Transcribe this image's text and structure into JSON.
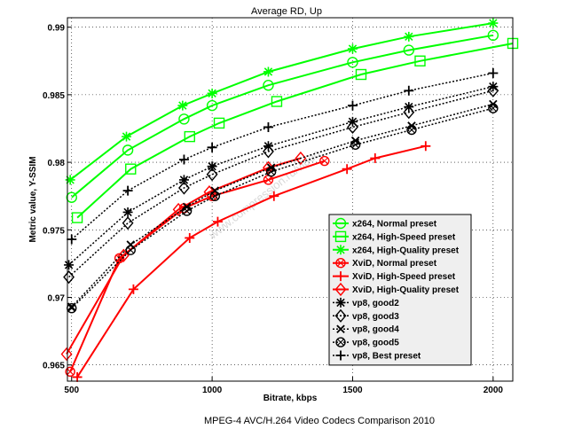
{
  "chart_data": {
    "type": "line",
    "title": "Average RD, Up",
    "xlabel": "Bitrate, kbps",
    "ylabel": "Metric value, Y-SSIM",
    "footer": "MPEG-4 AVC/H.264 Video Codecs Comparison 2010",
    "watermark": "www.compression.ru/video",
    "xlim": [
      485,
      2070
    ],
    "ylim": [
      0.9638,
      0.9907
    ],
    "xticks": [
      500,
      1000,
      1500,
      2000
    ],
    "yticks": [
      0.965,
      0.97,
      0.975,
      0.98,
      0.985,
      0.99
    ],
    "ytick_labels": [
      "0.965",
      "0.97",
      "0.975",
      "0.98",
      "0.985",
      "0.99"
    ],
    "legend_position": "bottom-right",
    "series": [
      {
        "name": "x264, Normal preset",
        "color": "#00ff00",
        "dash": "solid",
        "marker": "circle",
        "x": [
          500,
          700,
          900,
          1000,
          1200,
          1500,
          1700,
          2000
        ],
        "y": [
          0.9774,
          0.9809,
          0.9832,
          0.9842,
          0.9857,
          0.9874,
          0.9883,
          0.9894
        ]
      },
      {
        "name": "x264, High-Speed preset",
        "color": "#00ff00",
        "dash": "solid",
        "marker": "square",
        "x": [
          520,
          710,
          920,
          1025,
          1230,
          1530,
          1740,
          2070
        ],
        "y": [
          0.9759,
          0.9795,
          0.9819,
          0.9829,
          0.9845,
          0.9865,
          0.9875,
          0.9888
        ]
      },
      {
        "name": "x264, High-Quality preset",
        "color": "#00ff00",
        "dash": "solid",
        "marker": "star",
        "x": [
          495,
          695,
          895,
          1000,
          1200,
          1500,
          1700,
          2000
        ],
        "y": [
          0.9787,
          0.9819,
          0.9842,
          0.9851,
          0.9867,
          0.9884,
          0.9893,
          0.9903
        ]
      },
      {
        "name": "XviD, Normal preset",
        "color": "#ff0000",
        "dash": "solid",
        "marker": "xcircle",
        "x": [
          495,
          670,
          900,
          1000,
          1200,
          1400
        ],
        "y": [
          0.9645,
          0.9729,
          0.9766,
          0.9775,
          0.9787,
          0.9801
        ]
      },
      {
        "name": "XviD, High-Speed preset",
        "color": "#ff0000",
        "dash": "solid",
        "marker": "plus",
        "x": [
          520,
          720,
          920,
          1020,
          1220,
          1480,
          1580,
          1760
        ],
        "y": [
          0.9641,
          0.9706,
          0.9744,
          0.9756,
          0.9775,
          0.9795,
          0.9803,
          0.9812
        ]
      },
      {
        "name": "XviD, High-Quality preset",
        "color": "#ff0000",
        "dash": "solid",
        "marker": "diamond",
        "x": [
          482,
          685,
          880,
          990,
          1200,
          1315
        ],
        "y": [
          0.9658,
          0.9731,
          0.9765,
          0.9778,
          0.9796,
          0.9803
        ]
      },
      {
        "name": "vp8, good2",
        "color": "#000000",
        "dash": "dot",
        "marker": "star",
        "x": [
          490,
          700,
          900,
          1000,
          1200,
          1500,
          1700,
          2000
        ],
        "y": [
          0.9724,
          0.9763,
          0.9787,
          0.9797,
          0.9812,
          0.983,
          0.9841,
          0.9856
        ]
      },
      {
        "name": "vp8, good3",
        "color": "#000000",
        "dash": "dot",
        "marker": "diamond",
        "x": [
          490,
          700,
          900,
          1000,
          1200,
          1500,
          1700,
          2000
        ],
        "y": [
          0.9715,
          0.9755,
          0.9781,
          0.9791,
          0.9808,
          0.9826,
          0.9837,
          0.9853
        ]
      },
      {
        "name": "vp8, good4",
        "color": "#000000",
        "dash": "dot",
        "marker": "cross",
        "x": [
          500,
          710,
          910,
          1010,
          1210,
          1510,
          1710,
          2000
        ],
        "y": [
          0.9693,
          0.9739,
          0.9767,
          0.9779,
          0.9796,
          0.9816,
          0.9827,
          0.9843
        ]
      },
      {
        "name": "vp8, good5",
        "color": "#000000",
        "dash": "dot",
        "marker": "xcircle",
        "x": [
          500,
          710,
          910,
          1010,
          1210,
          1510,
          1710,
          2000
        ],
        "y": [
          0.9692,
          0.9735,
          0.9764,
          0.9775,
          0.9793,
          0.9813,
          0.9824,
          0.984
        ]
      },
      {
        "name": "vp8, Best preset",
        "color": "#000000",
        "dash": "dot",
        "marker": "plus",
        "x": [
          500,
          700,
          900,
          1000,
          1200,
          1500,
          1700,
          2000
        ],
        "y": [
          0.9743,
          0.9779,
          0.9802,
          0.9811,
          0.9826,
          0.9842,
          0.9853,
          0.9866
        ]
      }
    ]
  }
}
